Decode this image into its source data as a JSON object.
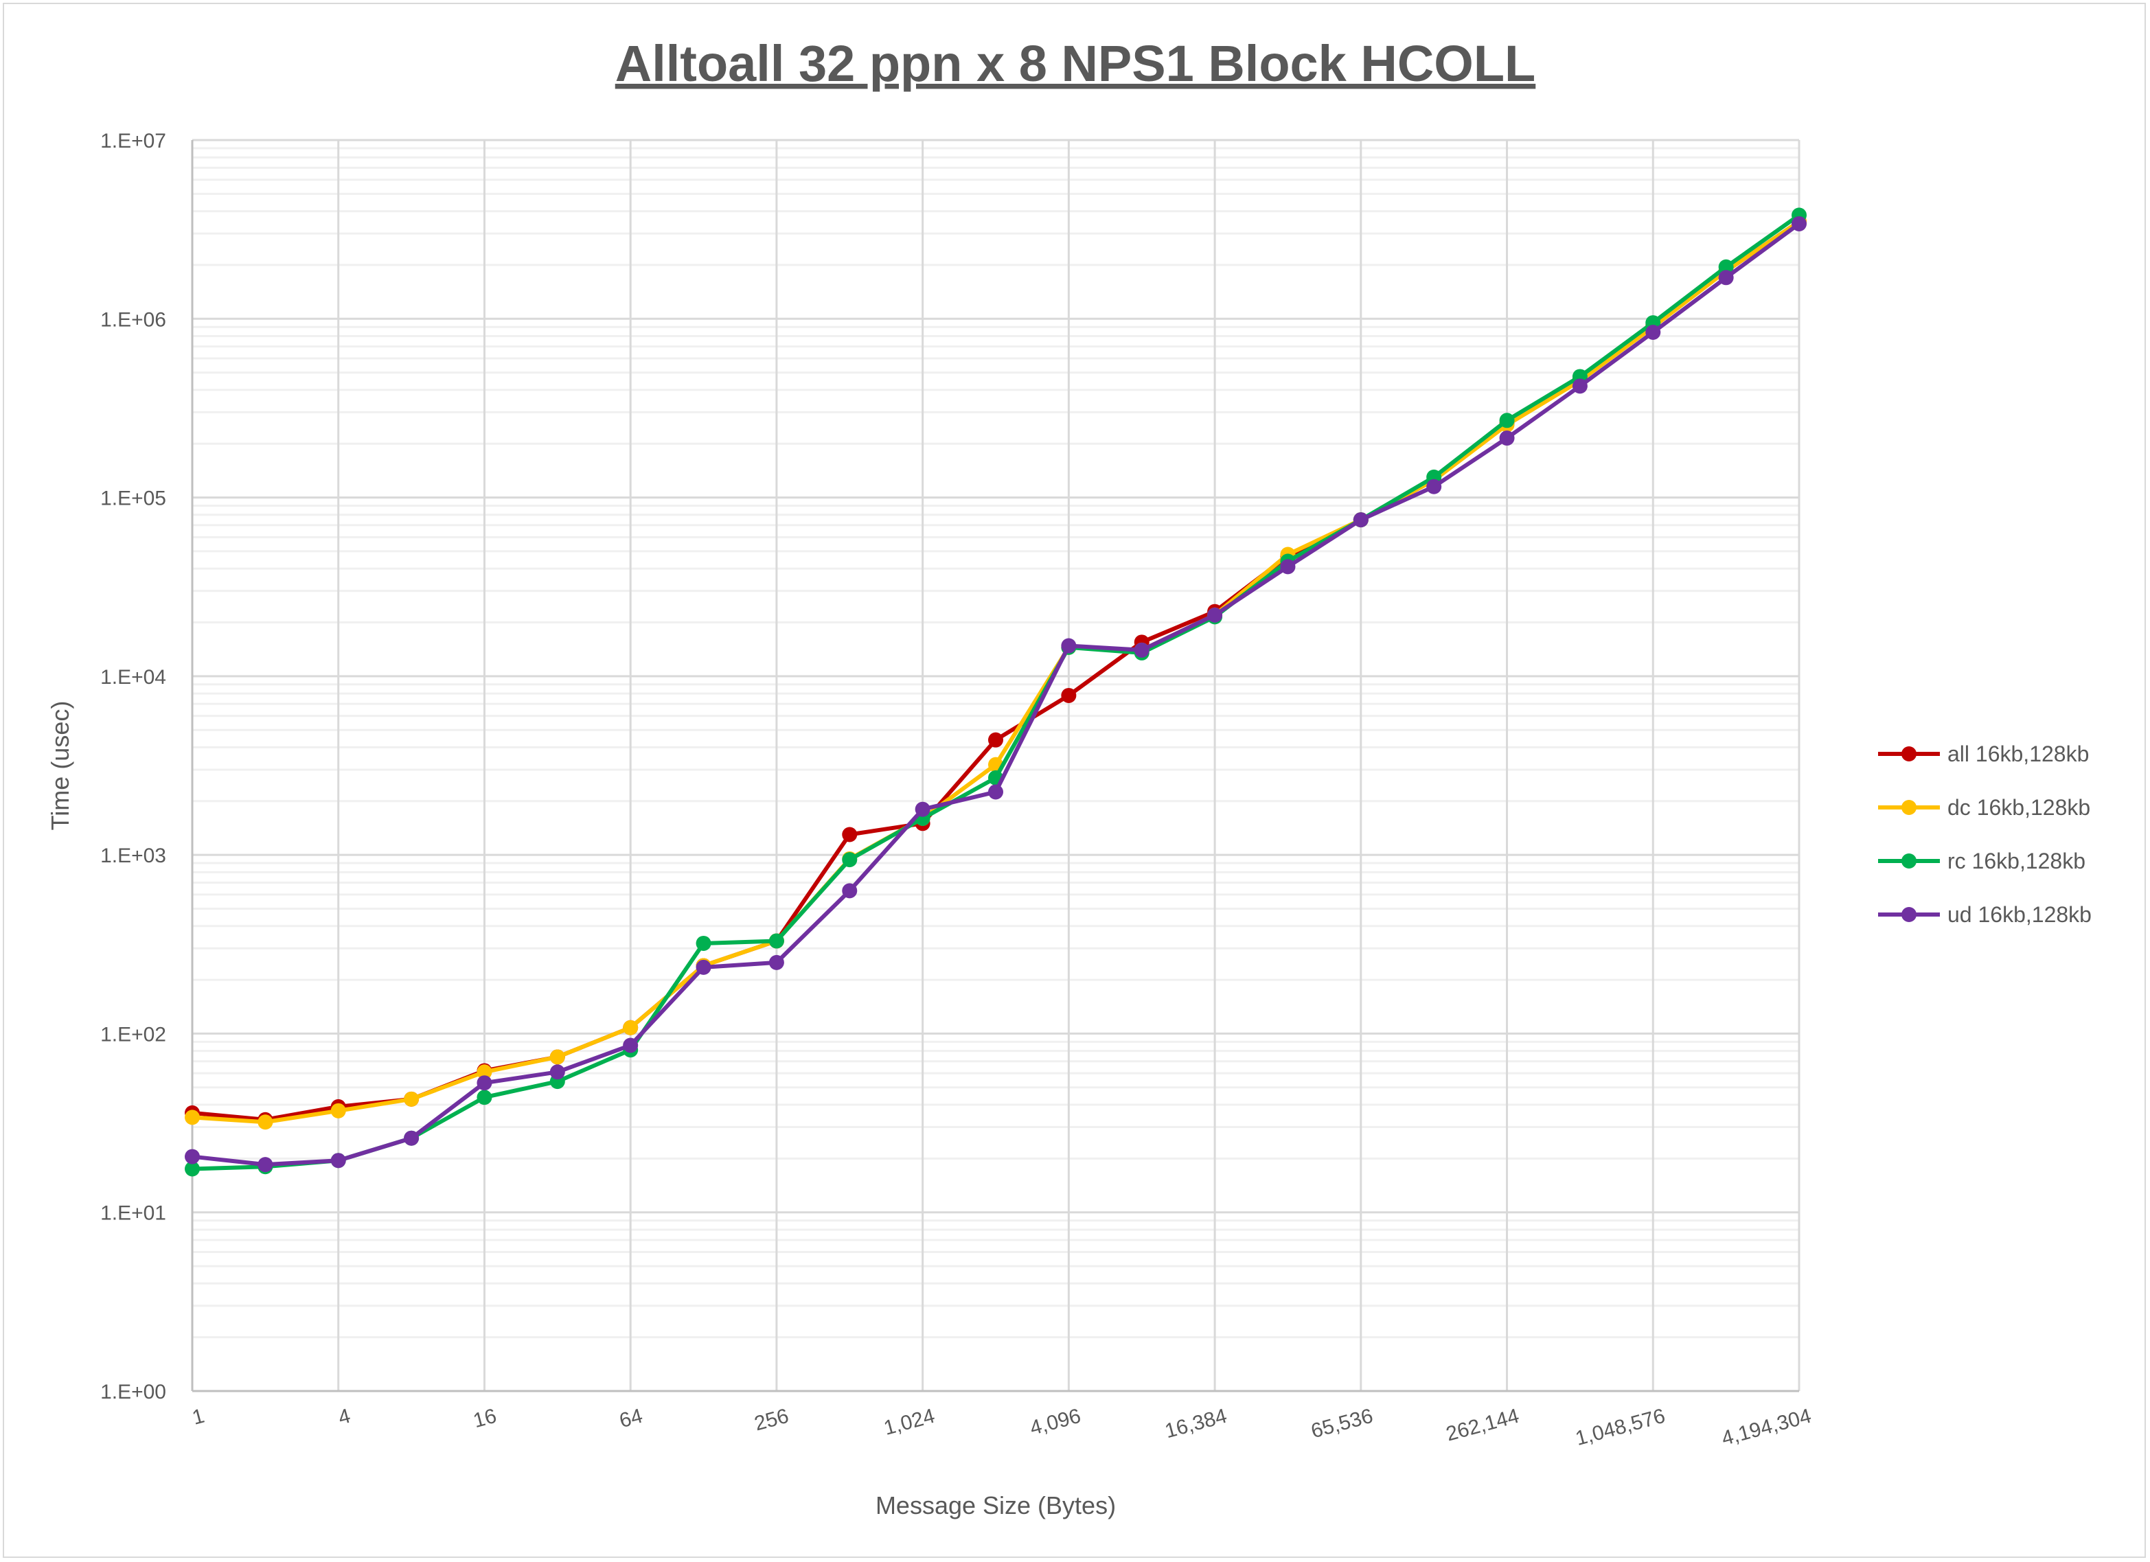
{
  "chart_data": {
    "type": "line",
    "title": "Alltoall 32 ppn x 8 NPS1 Block HCOLL",
    "xlabel": "Message Size (Bytes)",
    "ylabel": "Time (usec)",
    "x_scale": "log2",
    "y_scale": "log10",
    "ylim": [
      1,
      10000000
    ],
    "grid": true,
    "legend_position": "right",
    "x": [
      1,
      2,
      4,
      8,
      16,
      32,
      64,
      128,
      256,
      512,
      1024,
      2048,
      4096,
      8192,
      16384,
      32768,
      65536,
      131072,
      262144,
      524288,
      1048576,
      2097152,
      4194304
    ],
    "x_tick_labels": [
      "1",
      "4",
      "16",
      "64",
      "256",
      "1,024",
      "4,096",
      "16,384",
      "65,536",
      "262,144",
      "1,048,576",
      "4,194,304"
    ],
    "y_tick_labels": [
      "1.E+00",
      "1.E+01",
      "1.E+02",
      "1.E+03",
      "1.E+04",
      "1.E+05",
      "1.E+06",
      "1.E+07"
    ],
    "series": [
      {
        "name": "all 16kb,128kb",
        "color": "#C00000",
        "values": [
          36,
          33,
          39,
          43,
          62,
          74,
          108,
          240,
          330,
          1300,
          1500,
          4400,
          7800,
          15500,
          23000,
          47000,
          75000,
          125000,
          260000,
          460000,
          920000,
          1850000,
          3500000
        ]
      },
      {
        "name": "dc 16kb,128kb",
        "color": "#FFC000",
        "values": [
          34,
          32,
          37,
          43,
          61,
          74,
          108,
          240,
          330,
          950,
          1600,
          3200,
          14500,
          14000,
          22000,
          48000,
          75000,
          125000,
          255000,
          450000,
          900000,
          1850000,
          3500000
        ]
      },
      {
        "name": "rc 16kb,128kb",
        "color": "#00B050",
        "values": [
          17.5,
          18,
          19.5,
          26,
          44,
          54,
          81,
          320,
          330,
          940,
          1600,
          2700,
          14500,
          13500,
          21500,
          44000,
          75000,
          130000,
          270000,
          475000,
          950000,
          1950000,
          3800000
        ]
      },
      {
        "name": "ud 16kb,128kb",
        "color": "#7030A0",
        "values": [
          20.5,
          18.5,
          19.5,
          26,
          53,
          61,
          86,
          235,
          250,
          630,
          1800,
          2250,
          14800,
          14000,
          22000,
          41000,
          75000,
          115000,
          215000,
          420000,
          840000,
          1700000,
          3400000
        ]
      }
    ]
  }
}
